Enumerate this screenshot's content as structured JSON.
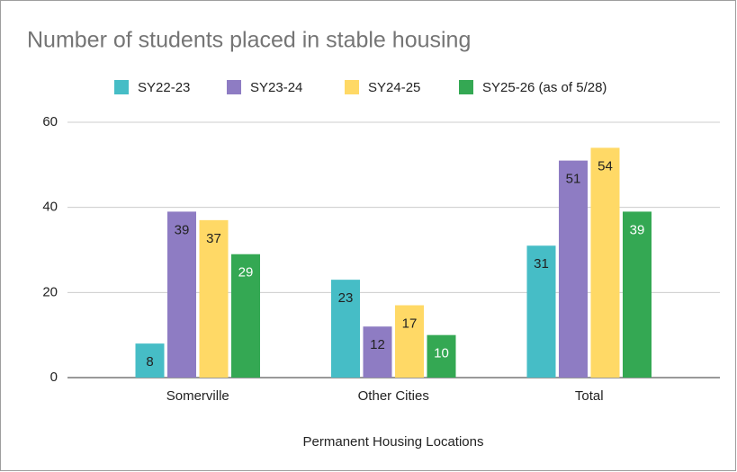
{
  "chart_data": {
    "type": "bar",
    "title": "Number of students placed in stable housing",
    "x_label": "Permanent Housing Locations",
    "categories": [
      "Somerville",
      "Other Cities",
      "Total"
    ],
    "series": [
      {
        "name": "SY22-23",
        "color": "#46bdc6",
        "values": [
          8,
          23,
          31
        ]
      },
      {
        "name": "SY23-24",
        "color": "#8e7cc3",
        "values": [
          39,
          12,
          51
        ]
      },
      {
        "name": "SY24-25",
        "color": "#ffd966",
        "values": [
          37,
          17,
          54
        ]
      },
      {
        "name": "SY25-26 (as of 5/28)",
        "color": "#34a853",
        "values": [
          29,
          10,
          39
        ]
      }
    ],
    "ylim": [
      0,
      60
    ],
    "yticks": [
      0,
      20,
      40,
      60
    ],
    "grid": true,
    "legend": "top"
  }
}
